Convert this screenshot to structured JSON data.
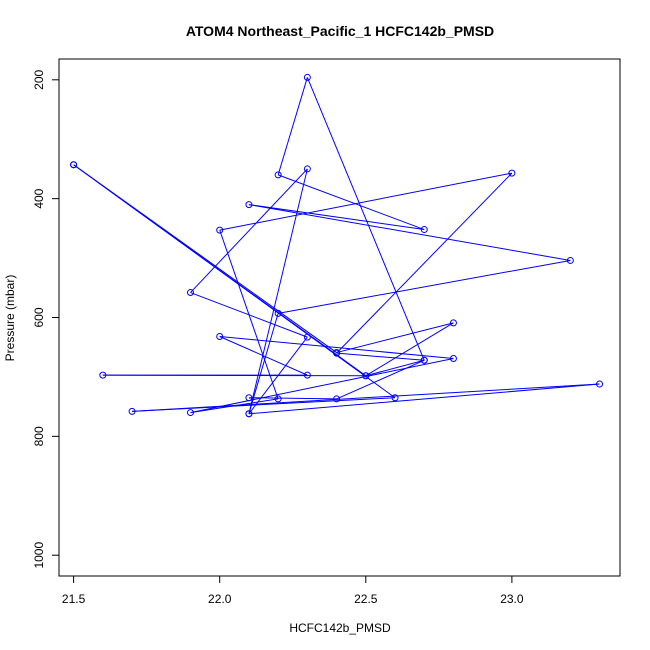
{
  "chart_data": {
    "type": "line",
    "title": "ATOM4 Northeast_Pacific_1 HCFC142b_PMSD",
    "xlabel": "HCFC142b_PMSD",
    "ylabel": "Pressure (mbar)",
    "xlim": [
      21.45,
      23.37
    ],
    "ylim": [
      1035,
      165
    ],
    "y_reversed": true,
    "grid": false,
    "x_ticks": [
      21.5,
      22.0,
      22.5,
      23.0
    ],
    "x_tick_labels": [
      "21.5",
      "22.0",
      "22.5",
      "23.0"
    ],
    "y_ticks": [
      200,
      400,
      600,
      800,
      1000
    ],
    "y_tick_labels": [
      "200",
      "400",
      "600",
      "800",
      "1000"
    ],
    "color": "#0000ff",
    "series": [
      {
        "marker": "open-circle",
        "points": [
          {
            "x": 21.5,
            "y": 343
          },
          {
            "x": 22.6,
            "y": 735
          },
          {
            "x": 21.7,
            "y": 758
          },
          {
            "x": 23.3,
            "y": 712
          },
          {
            "x": 22.1,
            "y": 762
          },
          {
            "x": 22.3,
            "y": 633
          },
          {
            "x": 21.9,
            "y": 558
          },
          {
            "x": 22.3,
            "y": 350
          },
          {
            "x": 22.1,
            "y": 762
          },
          {
            "x": 22.2,
            "y": 593
          },
          {
            "x": 23.2,
            "y": 504
          },
          {
            "x": 22.1,
            "y": 410
          },
          {
            "x": 22.7,
            "y": 452
          },
          {
            "x": 22.2,
            "y": 360
          },
          {
            "x": 22.3,
            "y": 196
          },
          {
            "x": 22.7,
            "y": 672
          },
          {
            "x": 22.4,
            "y": 660
          },
          {
            "x": 23.0,
            "y": 357
          },
          {
            "x": 22.0,
            "y": 453
          },
          {
            "x": 22.2,
            "y": 737
          },
          {
            "x": 21.9,
            "y": 760
          },
          {
            "x": 22.8,
            "y": 669
          },
          {
            "x": 22.0,
            "y": 632
          },
          {
            "x": 22.3,
            "y": 697
          },
          {
            "x": 21.6,
            "y": 697
          },
          {
            "x": 22.5,
            "y": 698
          },
          {
            "x": 22.8,
            "y": 609
          },
          {
            "x": 22.4,
            "y": 659
          },
          {
            "x": 21.5,
            "y": 343
          },
          {
            "x": 22.5,
            "y": 698
          },
          {
            "x": 22.7,
            "y": 672
          },
          {
            "x": 22.4,
            "y": 737
          },
          {
            "x": 22.1,
            "y": 735
          }
        ]
      }
    ]
  }
}
